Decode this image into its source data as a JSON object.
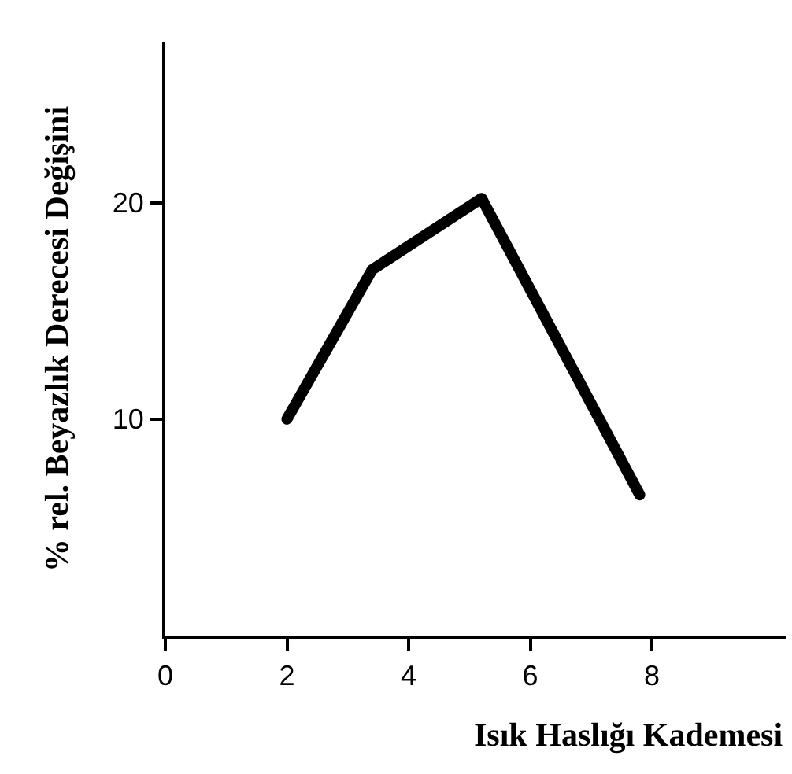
{
  "chart_data": {
    "type": "line",
    "xlabel": "Isık Haslığı Kademesi",
    "ylabel": "% rel. Beyazlık Derecesi Değişini",
    "x": [
      2,
      3.4,
      5.2,
      7.8
    ],
    "series": [
      {
        "color": "#000000",
        "values": [
          10,
          16.9,
          20.2,
          6.5
        ]
      }
    ],
    "xlim": [
      0,
      10.2
    ],
    "xticks": [
      0,
      2,
      4,
      6,
      8
    ],
    "ylim": [
      0,
      27.4
    ],
    "yticks": [
      10,
      20
    ],
    "legend": false,
    "line_style": "solid"
  }
}
